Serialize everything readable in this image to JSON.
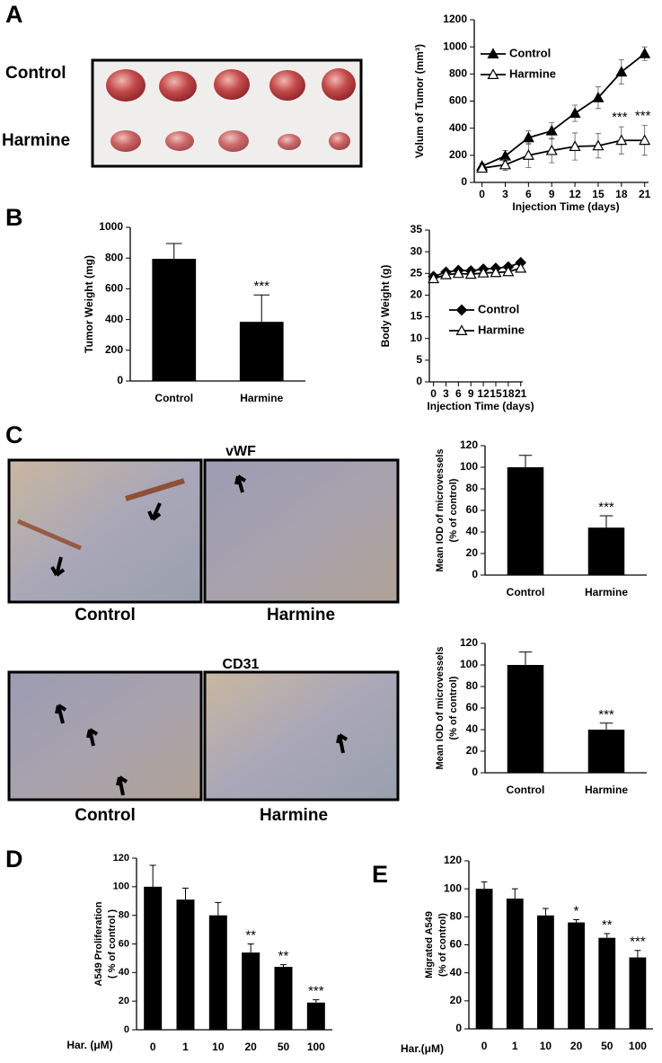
{
  "panel_labels": [
    "A",
    "B",
    "C",
    "D",
    "E"
  ],
  "photos": {
    "tumor_rows": [
      "Control",
      "Harmine"
    ],
    "stains": [
      "vWF",
      "CD31"
    ],
    "vwf_labels": [
      "Control",
      "Harmine"
    ],
    "cd31_labels": [
      "Control",
      "Harmine"
    ]
  },
  "chart_data": [
    {
      "type": "line",
      "ylabel": "Volum of Tumor (mm³)",
      "xlabel": "Injection Time (days)",
      "x": [
        0,
        3,
        6,
        9,
        12,
        15,
        18,
        21
      ],
      "xlim": [
        -1,
        21.5
      ],
      "xticks": [
        0,
        3,
        6,
        9,
        12,
        15,
        18,
        21
      ],
      "ylim": [
        0,
        1200
      ],
      "yticks": [
        0,
        200,
        400,
        600,
        800,
        1000,
        1200
      ],
      "legend": "upper left",
      "series": [
        {
          "name": "Control",
          "color": "#000000",
          "marker": "triangle",
          "filled": true,
          "values": [
            120,
            195,
            330,
            380,
            510,
            625,
            815,
            950
          ],
          "errors": [
            20,
            40,
            50,
            60,
            60,
            80,
            90,
            50
          ]
        },
        {
          "name": "Harmine",
          "color": "#000000",
          "marker": "triangle",
          "filled": false,
          "values": [
            105,
            130,
            200,
            235,
            265,
            270,
            310,
            310
          ],
          "errors": [
            20,
            40,
            90,
            90,
            100,
            90,
            100,
            110
          ],
          "significance": [
            null,
            null,
            null,
            null,
            null,
            null,
            "***",
            "***"
          ]
        }
      ]
    },
    {
      "type": "bar",
      "ylabel": "Tumor  Weight (mg)",
      "categories": [
        "Control",
        "Harmine"
      ],
      "values": [
        795,
        385
      ],
      "errors": [
        100,
        175
      ],
      "significance": [
        null,
        "***"
      ],
      "color": "#000000",
      "ylim": [
        0,
        1000
      ],
      "yticks": [
        0,
        200,
        400,
        600,
        800,
        1000
      ]
    },
    {
      "type": "line",
      "ylabel": "Body Weight (g)",
      "xlabel": "Injection Time (days)",
      "x": [
        0,
        3,
        6,
        9,
        12,
        15,
        18,
        21
      ],
      "xlim": [
        -1,
        21.5
      ],
      "xticks": [
        0,
        3,
        6,
        9,
        12,
        15,
        18,
        21
      ],
      "ylim": [
        0,
        35
      ],
      "yticks": [
        0,
        5,
        10,
        15,
        20,
        25,
        30,
        35
      ],
      "legend": "center",
      "series": [
        {
          "name": "Control",
          "color": "#000000",
          "marker": "diamond",
          "filled": true,
          "values": [
            24.3,
            25.3,
            25.7,
            25.6,
            26,
            26.2,
            26.5,
            27.5
          ]
        },
        {
          "name": "Harmine",
          "color": "#000000",
          "marker": "triangle",
          "filled": false,
          "values": [
            23.8,
            24.7,
            25,
            24.8,
            25.1,
            25.2,
            25.4,
            26.2
          ]
        }
      ]
    },
    {
      "type": "bar",
      "ylabel": [
        "Mean IOD of microvessels",
        "(% of control)"
      ],
      "categories": [
        "Control",
        "Harmine"
      ],
      "values": [
        100,
        44
      ],
      "errors": [
        11,
        11
      ],
      "significance": [
        null,
        "***"
      ],
      "color": "#000000",
      "ylim": [
        0,
        120
      ],
      "yticks": [
        0,
        20,
        40,
        60,
        80,
        100,
        120
      ]
    },
    {
      "type": "bar",
      "ylabel": [
        "Mean IOD of microvessels",
        "(% of control)"
      ],
      "categories": [
        "Control",
        "Harmine"
      ],
      "values": [
        100,
        40
      ],
      "errors": [
        12,
        6
      ],
      "significance": [
        null,
        "***"
      ],
      "color": "#000000",
      "ylim": [
        0,
        120
      ],
      "yticks": [
        0,
        20,
        40,
        60,
        80,
        100,
        120
      ]
    },
    {
      "type": "bar",
      "ylabel": [
        "A549 Proliferation",
        "( % of control )"
      ],
      "xlabel": "Har. (μM)",
      "categories": [
        "0",
        "1",
        "10",
        "20",
        "50",
        "100"
      ],
      "values": [
        100,
        91,
        80,
        54,
        44,
        19
      ],
      "errors": [
        15,
        8,
        9,
        6,
        1.5,
        2
      ],
      "significance": [
        null,
        null,
        null,
        "**",
        "**",
        "***"
      ],
      "color": "#000000",
      "ylim": [
        0,
        120
      ],
      "yticks": [
        0,
        20,
        40,
        60,
        80,
        100,
        120
      ]
    },
    {
      "type": "bar",
      "ylabel": [
        "Migrated A549",
        "(% of control)"
      ],
      "xlabel": "Har.(μM)",
      "categories": [
        "0",
        "1",
        "10",
        "20",
        "50",
        "100"
      ],
      "values": [
        100,
        93,
        81,
        76,
        65,
        51
      ],
      "errors": [
        5,
        7,
        5,
        2,
        3,
        5
      ],
      "significance": [
        null,
        null,
        null,
        "*",
        "**",
        "***"
      ],
      "color": "#000000",
      "ylim": [
        0,
        120
      ],
      "yticks": [
        0,
        20,
        40,
        60,
        80,
        100,
        120
      ]
    }
  ]
}
